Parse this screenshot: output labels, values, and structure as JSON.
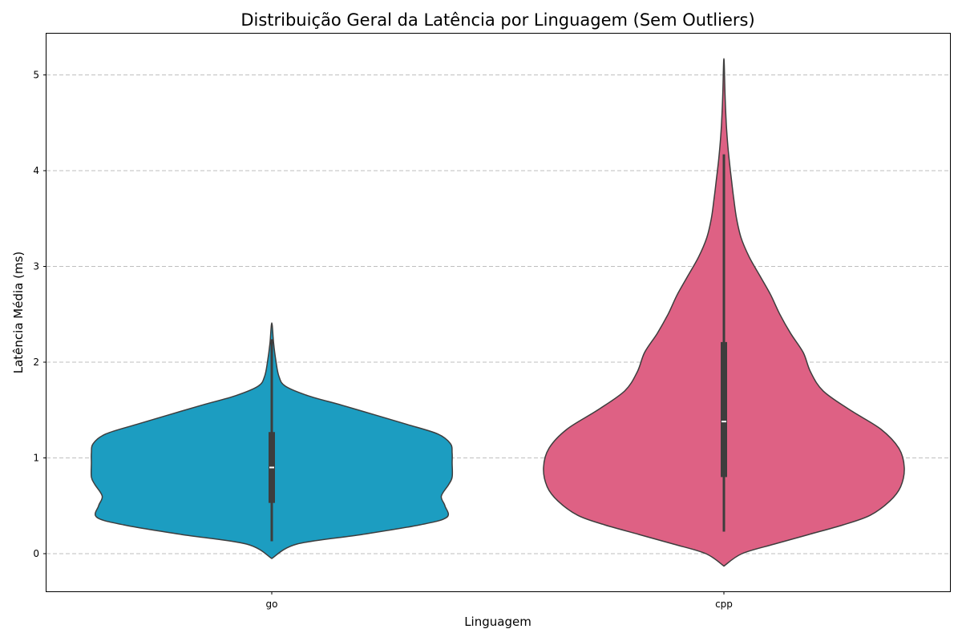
{
  "chart_data": {
    "type": "violin",
    "title": "Distribuição Geral da Latência por Linguagem (Sem Outliers)",
    "xlabel": "Linguagem",
    "ylabel": "Latência Média (ms)",
    "ylim": [
      -0.4,
      5.42
    ],
    "yticks": [
      0,
      1,
      2,
      3,
      4,
      5
    ],
    "categories": [
      "go",
      "cpp"
    ],
    "grid": "y",
    "series": [
      {
        "category": "go",
        "color": "#1c9dc1",
        "whisker_low": 0.13,
        "q1": 0.53,
        "median": 0.9,
        "q3": 1.27,
        "whisker_high": 2.24,
        "density": [
          {
            "y": -0.05,
            "w": 0.0
          },
          {
            "y": 0.1,
            "w": 0.14
          },
          {
            "y": 0.2,
            "w": 0.5
          },
          {
            "y": 0.3,
            "w": 0.82
          },
          {
            "y": 0.38,
            "w": 0.97
          },
          {
            "y": 0.5,
            "w": 0.96
          },
          {
            "y": 0.6,
            "w": 0.94
          },
          {
            "y": 0.72,
            "w": 0.98
          },
          {
            "y": 0.8,
            "w": 1.0
          },
          {
            "y": 0.95,
            "w": 1.0
          },
          {
            "y": 1.05,
            "w": 1.0
          },
          {
            "y": 1.15,
            "w": 0.99
          },
          {
            "y": 1.25,
            "w": 0.92
          },
          {
            "y": 1.35,
            "w": 0.75
          },
          {
            "y": 1.45,
            "w": 0.57
          },
          {
            "y": 1.55,
            "w": 0.39
          },
          {
            "y": 1.65,
            "w": 0.2
          },
          {
            "y": 1.75,
            "w": 0.075
          },
          {
            "y": 1.85,
            "w": 0.04
          },
          {
            "y": 2.0,
            "w": 0.024
          },
          {
            "y": 2.2,
            "w": 0.01
          },
          {
            "y": 2.41,
            "w": 0.0
          }
        ]
      },
      {
        "category": "cpp",
        "color": "#de6184",
        "whisker_low": 0.23,
        "q1": 0.8,
        "median": 1.38,
        "q3": 2.21,
        "whisker_high": 4.17,
        "density": [
          {
            "y": -0.13,
            "w": 0.0
          },
          {
            "y": 0.0,
            "w": 0.1
          },
          {
            "y": 0.1,
            "w": 0.28
          },
          {
            "y": 0.2,
            "w": 0.47
          },
          {
            "y": 0.3,
            "w": 0.66
          },
          {
            "y": 0.4,
            "w": 0.81
          },
          {
            "y": 0.55,
            "w": 0.92
          },
          {
            "y": 0.7,
            "w": 0.98
          },
          {
            "y": 0.9,
            "w": 1.0
          },
          {
            "y": 1.1,
            "w": 0.97
          },
          {
            "y": 1.3,
            "w": 0.87
          },
          {
            "y": 1.5,
            "w": 0.7
          },
          {
            "y": 1.7,
            "w": 0.55
          },
          {
            "y": 1.9,
            "w": 0.48
          },
          {
            "y": 2.1,
            "w": 0.44
          },
          {
            "y": 2.3,
            "w": 0.37
          },
          {
            "y": 2.5,
            "w": 0.31
          },
          {
            "y": 2.7,
            "w": 0.26
          },
          {
            "y": 2.9,
            "w": 0.2
          },
          {
            "y": 3.1,
            "w": 0.14
          },
          {
            "y": 3.3,
            "w": 0.095
          },
          {
            "y": 3.5,
            "w": 0.07
          },
          {
            "y": 3.7,
            "w": 0.055
          },
          {
            "y": 3.9,
            "w": 0.042
          },
          {
            "y": 4.1,
            "w": 0.03
          },
          {
            "y": 4.3,
            "w": 0.02
          },
          {
            "y": 4.5,
            "w": 0.013
          },
          {
            "y": 4.8,
            "w": 0.006
          },
          {
            "y": 5.17,
            "w": 0.0
          }
        ]
      }
    ]
  }
}
